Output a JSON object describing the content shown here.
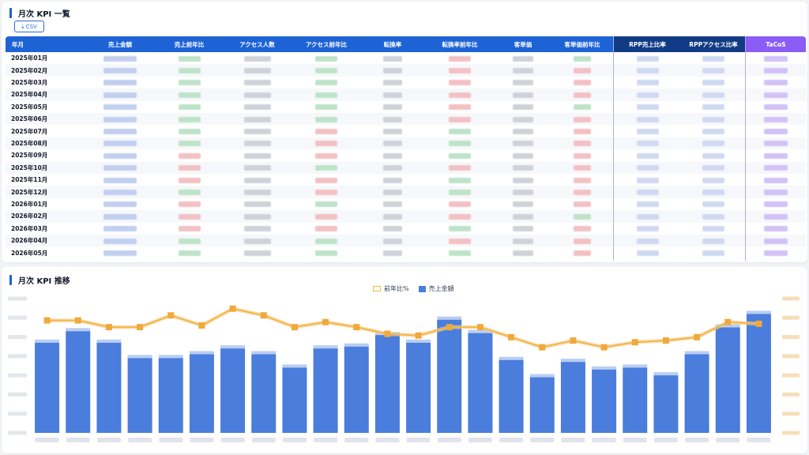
{
  "table_section": {
    "title": "月次 KPI 一覧",
    "csv_label": "CSV",
    "csv_icon": "download-icon"
  },
  "table": {
    "columns": [
      {
        "key": "month",
        "label": "年月"
      },
      {
        "key": "sales",
        "label": "売上金額"
      },
      {
        "key": "sales_yoy",
        "label": "売上前年比"
      },
      {
        "key": "visitors",
        "label": "アクセス人数"
      },
      {
        "key": "visitors_yoy",
        "label": "アクセス前年比"
      },
      {
        "key": "cvr",
        "label": "転換率"
      },
      {
        "key": "cvr_yoy",
        "label": "転換率前年比"
      },
      {
        "key": "aov",
        "label": "客単価"
      },
      {
        "key": "aov_yoy",
        "label": "客単価前年比"
      },
      {
        "key": "rpp_sales",
        "label": "RPP売上比率"
      },
      {
        "key": "rpp_access",
        "label": "RPPアクセス比率"
      },
      {
        "key": "tacos",
        "label": "TaCoS"
      }
    ],
    "rows": [
      {
        "month": "2025年01月",
        "tones": [
          "blue",
          "green",
          "gray",
          "green",
          "gray",
          "red",
          "gray",
          "green",
          "lblue",
          "lblue",
          "purple"
        ]
      },
      {
        "month": "2025年02月",
        "tones": [
          "blue",
          "green",
          "gray",
          "green",
          "gray",
          "red",
          "gray",
          "red",
          "lblue",
          "lblue",
          "purple"
        ]
      },
      {
        "month": "2025年03月",
        "tones": [
          "blue",
          "green",
          "gray",
          "green",
          "gray",
          "red",
          "gray",
          "red",
          "lblue",
          "lblue",
          "purple"
        ]
      },
      {
        "month": "2025年04月",
        "tones": [
          "blue",
          "green",
          "gray",
          "green",
          "gray",
          "red",
          "gray",
          "red",
          "lblue",
          "lblue",
          "purple"
        ]
      },
      {
        "month": "2025年05月",
        "tones": [
          "blue",
          "green",
          "gray",
          "green",
          "gray",
          "red",
          "gray",
          "green",
          "lblue",
          "lblue",
          "purple"
        ]
      },
      {
        "month": "2025年06月",
        "tones": [
          "blue",
          "green",
          "gray",
          "green",
          "gray",
          "red",
          "gray",
          "red",
          "lblue",
          "lblue",
          "purple"
        ]
      },
      {
        "month": "2025年07月",
        "tones": [
          "blue",
          "green",
          "gray",
          "red",
          "gray",
          "green",
          "gray",
          "red",
          "lblue",
          "lblue",
          "purple"
        ]
      },
      {
        "month": "2025年08月",
        "tones": [
          "blue",
          "green",
          "gray",
          "red",
          "gray",
          "green",
          "gray",
          "red",
          "lblue",
          "lblue",
          "purple"
        ]
      },
      {
        "month": "2025年09月",
        "tones": [
          "blue",
          "red",
          "gray",
          "red",
          "gray",
          "green",
          "gray",
          "red",
          "lblue",
          "lblue",
          "purple"
        ]
      },
      {
        "month": "2025年10月",
        "tones": [
          "blue",
          "red",
          "gray",
          "green",
          "gray",
          "red",
          "gray",
          "red",
          "lblue",
          "lblue",
          "purple"
        ]
      },
      {
        "month": "2025年11月",
        "tones": [
          "blue",
          "red",
          "gray",
          "red",
          "gray",
          "green",
          "gray",
          "red",
          "lblue",
          "lblue",
          "purple"
        ]
      },
      {
        "month": "2025年12月",
        "tones": [
          "blue",
          "green",
          "gray",
          "red",
          "gray",
          "green",
          "gray",
          "red",
          "lblue",
          "lblue",
          "purple"
        ]
      },
      {
        "month": "2026年01月",
        "tones": [
          "blue",
          "red",
          "gray",
          "green",
          "gray",
          "red",
          "gray",
          "red",
          "lblue",
          "lblue",
          "purple"
        ]
      },
      {
        "month": "2026年02月",
        "tones": [
          "blue",
          "red",
          "gray",
          "red",
          "gray",
          "red",
          "gray",
          "green",
          "lblue",
          "lblue",
          "purple"
        ]
      },
      {
        "month": "2026年03月",
        "tones": [
          "blue",
          "red",
          "gray",
          "red",
          "gray",
          "green",
          "gray",
          "red",
          "lblue",
          "lblue",
          "purple"
        ]
      },
      {
        "month": "2026年04月",
        "tones": [
          "blue",
          "green",
          "gray",
          "green",
          "gray",
          "red",
          "gray",
          "red",
          "lblue",
          "lblue",
          "purple"
        ]
      },
      {
        "month": "2026年05月",
        "tones": [
          "blue",
          "green",
          "gray",
          "green",
          "gray",
          "green",
          "gray",
          "red",
          "lblue",
          "lblue",
          "purple"
        ]
      }
    ]
  },
  "chart_section": {
    "title": "月次 KPI 推移"
  },
  "chart_data": {
    "type": "bar",
    "legend": [
      "前年比%",
      "売上金額"
    ],
    "legend_position": "top-center",
    "series": [
      {
        "kind": "line",
        "axis": "right",
        "values": [
          67,
          67,
          63,
          63,
          70,
          64,
          74,
          70,
          63,
          66,
          63,
          59,
          58,
          63,
          63,
          57,
          51,
          55,
          51,
          54,
          55,
          57,
          66,
          65
        ]
      },
      {
        "kind": "bar",
        "axis": "left",
        "values": [
          47,
          53,
          47,
          39,
          39,
          41,
          44,
          41,
          34,
          44,
          45,
          51,
          47,
          59,
          52,
          38,
          29,
          37,
          33,
          34,
          30,
          41,
          55,
          62
        ]
      }
    ],
    "ylim_left": [
      0,
      70
    ],
    "ylim_right": [
      0,
      80
    ],
    "grid": false,
    "colors": {
      "bar": "#4a7ddc",
      "line": "#f3b548"
    }
  },
  "colors": {
    "header_blue": "#1e63d6",
    "header_navy": "#123b86",
    "header_purple": "#8b5cf6",
    "accent": "#1d5fd6"
  }
}
